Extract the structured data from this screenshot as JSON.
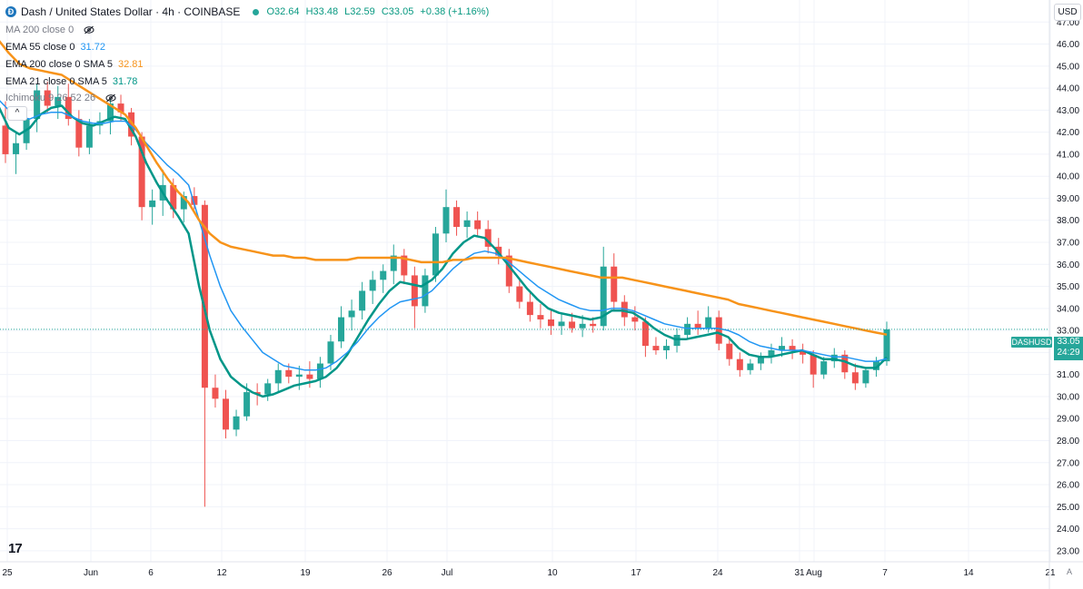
{
  "header": {
    "symbol_title": "Dash / United States Dollar · 4h · COINBASE",
    "logo_glyph": "Đ",
    "ohlc": {
      "o": "O32.64",
      "h": "H33.48",
      "l": "L32.59",
      "c": "C33.05",
      "change": "+0.38 (+1.16%)"
    }
  },
  "indicators": [
    {
      "label": "MA 200 close 0",
      "value": "",
      "color": "#787b86",
      "hidden": true
    },
    {
      "label": "EMA 55 close 0",
      "value": "31.72",
      "color": "#2196f3"
    },
    {
      "label": "EMA 200 close 0 SMA 5",
      "value": "32.81",
      "color": "#f7931a"
    },
    {
      "label": "EMA 21 close 0 SMA 5",
      "value": "31.78",
      "color": "#009688"
    },
    {
      "label": "Ichimoku 9 26 52 26",
      "value": "",
      "color": "#787b86",
      "hidden": true
    }
  ],
  "toolbar": {
    "currency": "USD",
    "collapse_glyph": "^",
    "auto_label": "A"
  },
  "branding": {
    "logo_text": "17"
  },
  "price_tag": {
    "symbol": "DASHUSD",
    "price": "33.05",
    "countdown": "24:29"
  },
  "chart_data": {
    "type": "line",
    "title": "Dash / United States Dollar · 4h · COINBASE",
    "ylim": [
      22.5,
      48.0
    ],
    "y_ticks": [
      "47.00",
      "46.00",
      "45.00",
      "44.00",
      "43.00",
      "42.00",
      "41.00",
      "40.00",
      "39.00",
      "38.00",
      "37.00",
      "36.00",
      "35.00",
      "34.00",
      "33.00",
      "32.00",
      "31.00",
      "30.00",
      "29.00",
      "28.00",
      "27.00",
      "26.00",
      "25.00",
      "24.00",
      "23.00"
    ],
    "x_ticks": [
      "25",
      "Jun",
      "6",
      "12",
      "19",
      "26",
      "Jul",
      "10",
      "17",
      "24",
      "31",
      "Aug",
      "7",
      "14",
      "21"
    ],
    "grid": true,
    "last_price": 33.05,
    "candles": [
      [
        42.3,
        43.4,
        40.6,
        41.0
      ],
      [
        41.0,
        42.0,
        40.1,
        41.5
      ],
      [
        41.5,
        42.9,
        41.2,
        42.6
      ],
      [
        42.6,
        44.2,
        42.0,
        43.9
      ],
      [
        43.9,
        44.3,
        42.9,
        43.2
      ],
      [
        43.2,
        44.1,
        42.6,
        43.6
      ],
      [
        43.6,
        44.2,
        42.3,
        42.6
      ],
      [
        42.6,
        43.0,
        40.9,
        41.3
      ],
      [
        41.3,
        42.6,
        41.0,
        42.3
      ],
      [
        42.3,
        42.9,
        41.9,
        42.5
      ],
      [
        42.5,
        43.5,
        41.9,
        43.3
      ],
      [
        43.3,
        43.7,
        42.5,
        42.9
      ],
      [
        42.9,
        43.1,
        41.4,
        41.8
      ],
      [
        41.8,
        42.0,
        38.0,
        38.6
      ],
      [
        38.6,
        39.4,
        37.8,
        38.9
      ],
      [
        38.9,
        40.3,
        38.2,
        39.6
      ],
      [
        39.6,
        39.9,
        38.1,
        38.5
      ],
      [
        38.5,
        39.3,
        37.9,
        39.1
      ],
      [
        39.1,
        39.5,
        38.5,
        38.7
      ],
      [
        38.7,
        38.9,
        25.0,
        30.4
      ],
      [
        30.4,
        31.0,
        29.5,
        29.9
      ],
      [
        29.9,
        30.3,
        28.1,
        28.5
      ],
      [
        28.5,
        29.4,
        28.2,
        29.1
      ],
      [
        29.1,
        30.6,
        28.9,
        30.2
      ],
      [
        30.2,
        30.6,
        29.6,
        30.1
      ],
      [
        30.1,
        30.8,
        29.8,
        30.6
      ],
      [
        30.6,
        31.5,
        30.2,
        31.2
      ],
      [
        31.2,
        31.5,
        30.6,
        30.9
      ],
      [
        30.9,
        31.4,
        30.3,
        31.0
      ],
      [
        31.0,
        31.6,
        30.4,
        30.8
      ],
      [
        30.8,
        31.8,
        30.4,
        31.5
      ],
      [
        31.5,
        32.8,
        31.2,
        32.5
      ],
      [
        32.5,
        34.1,
        32.2,
        33.6
      ],
      [
        33.6,
        34.4,
        33.0,
        33.9
      ],
      [
        33.9,
        35.2,
        33.5,
        34.8
      ],
      [
        34.8,
        35.7,
        34.2,
        35.3
      ],
      [
        35.3,
        36.0,
        34.7,
        35.7
      ],
      [
        35.7,
        36.9,
        35.1,
        36.4
      ],
      [
        36.4,
        36.7,
        35.1,
        35.5
      ],
      [
        35.5,
        35.9,
        33.1,
        34.1
      ],
      [
        34.1,
        35.8,
        33.8,
        35.5
      ],
      [
        35.5,
        37.7,
        35.2,
        37.4
      ],
      [
        37.4,
        39.4,
        37.0,
        38.6
      ],
      [
        38.6,
        38.9,
        37.3,
        37.7
      ],
      [
        37.7,
        38.4,
        37.2,
        38.0
      ],
      [
        38.0,
        38.4,
        37.3,
        37.6
      ],
      [
        37.6,
        38.0,
        36.5,
        36.8
      ],
      [
        36.8,
        37.2,
        36.0,
        36.4
      ],
      [
        36.4,
        36.7,
        34.7,
        35.0
      ],
      [
        35.0,
        35.3,
        34.0,
        34.3
      ],
      [
        34.3,
        34.8,
        33.4,
        33.7
      ],
      [
        33.7,
        34.2,
        33.1,
        33.5
      ],
      [
        33.5,
        33.9,
        32.8,
        33.2
      ],
      [
        33.2,
        33.8,
        32.8,
        33.4
      ],
      [
        33.4,
        33.8,
        32.9,
        33.1
      ],
      [
        33.1,
        33.7,
        32.7,
        33.3
      ],
      [
        33.3,
        33.6,
        32.9,
        33.2
      ],
      [
        33.2,
        36.8,
        33.0,
        35.9
      ],
      [
        35.9,
        36.5,
        33.9,
        34.3
      ],
      [
        34.3,
        34.6,
        33.2,
        33.6
      ],
      [
        33.6,
        34.1,
        33.0,
        33.4
      ],
      [
        33.4,
        33.6,
        31.8,
        32.3
      ],
      [
        32.3,
        32.7,
        31.9,
        32.1
      ],
      [
        32.1,
        32.6,
        31.7,
        32.3
      ],
      [
        32.3,
        33.1,
        32.0,
        32.8
      ],
      [
        32.8,
        33.6,
        32.6,
        33.3
      ],
      [
        33.3,
        33.9,
        32.8,
        33.1
      ],
      [
        33.1,
        34.1,
        32.9,
        33.6
      ],
      [
        33.6,
        33.9,
        32.1,
        32.4
      ],
      [
        32.4,
        32.6,
        31.4,
        31.7
      ],
      [
        31.7,
        32.0,
        30.9,
        31.2
      ],
      [
        31.2,
        31.7,
        31.0,
        31.5
      ],
      [
        31.5,
        32.0,
        31.2,
        31.8
      ],
      [
        31.8,
        32.4,
        31.5,
        32.1
      ],
      [
        32.1,
        32.7,
        31.8,
        32.3
      ],
      [
        32.3,
        32.6,
        31.7,
        32.1
      ],
      [
        32.1,
        32.4,
        31.5,
        31.9
      ],
      [
        31.9,
        32.1,
        30.4,
        31.0
      ],
      [
        31.0,
        31.8,
        30.8,
        31.6
      ],
      [
        31.6,
        32.2,
        31.3,
        31.9
      ],
      [
        31.9,
        32.1,
        30.8,
        31.1
      ],
      [
        31.1,
        31.5,
        30.3,
        30.6
      ],
      [
        30.6,
        31.3,
        30.4,
        31.2
      ],
      [
        31.2,
        31.8,
        30.9,
        31.6
      ],
      [
        31.6,
        33.4,
        31.4,
        33.05
      ]
    ],
    "series": [
      {
        "name": "EMA 21 close 0 SMA 5",
        "color": "#009688",
        "values": [
          43.2,
          42.2,
          41.9,
          42.2,
          42.8,
          43.1,
          43.2,
          42.7,
          42.4,
          42.3,
          42.5,
          42.7,
          42.6,
          41.8,
          40.6,
          39.7,
          38.9,
          38.2,
          37.4,
          35.0,
          33.0,
          31.7,
          30.9,
          30.5,
          30.2,
          30.0,
          30.1,
          30.3,
          30.5,
          30.6,
          30.7,
          30.9,
          31.3,
          31.9,
          32.7,
          33.5,
          34.2,
          34.8,
          35.2,
          35.1,
          35.0,
          35.3,
          35.8,
          36.5,
          37.0,
          37.3,
          37.2,
          36.7,
          36.1,
          35.5,
          34.9,
          34.4,
          34.0,
          33.8,
          33.7,
          33.6,
          33.5,
          33.6,
          33.9,
          33.9,
          33.8,
          33.5,
          33.1,
          32.8,
          32.6,
          32.6,
          32.7,
          32.8,
          32.9,
          32.7,
          32.2,
          31.9,
          31.8,
          31.8,
          31.9,
          32.0,
          32.1,
          31.9,
          31.7,
          31.7,
          31.6,
          31.4,
          31.3,
          31.3,
          31.78
        ]
      },
      {
        "name": "EMA 55 close 0",
        "color": "#2196f3",
        "values": [
          43.5,
          43.0,
          42.7,
          42.6,
          42.8,
          42.9,
          42.9,
          42.7,
          42.5,
          42.4,
          42.4,
          42.5,
          42.5,
          42.1,
          41.5,
          41.0,
          40.5,
          40.1,
          39.6,
          38.0,
          36.4,
          35.0,
          33.9,
          33.2,
          32.6,
          32.0,
          31.7,
          31.4,
          31.3,
          31.2,
          31.2,
          31.3,
          31.6,
          32.0,
          32.5,
          33.1,
          33.6,
          34.0,
          34.3,
          34.4,
          34.5,
          34.8,
          35.3,
          35.8,
          36.2,
          36.5,
          36.6,
          36.5,
          36.2,
          35.8,
          35.4,
          35.0,
          34.7,
          34.4,
          34.2,
          34.0,
          33.9,
          33.9,
          34.0,
          34.0,
          33.9,
          33.7,
          33.5,
          33.3,
          33.2,
          33.1,
          33.1,
          33.1,
          33.1,
          33.0,
          32.8,
          32.5,
          32.3,
          32.2,
          32.1,
          32.1,
          32.1,
          32.0,
          31.9,
          31.8,
          31.8,
          31.7,
          31.6,
          31.6,
          31.72
        ]
      },
      {
        "name": "EMA 200 close 0 SMA 5",
        "color": "#f7931a",
        "values": [
          46.2,
          45.6,
          45.1,
          44.9,
          44.8,
          44.7,
          44.6,
          44.3,
          44.0,
          43.7,
          43.4,
          43.1,
          42.8,
          42.2,
          41.4,
          40.6,
          39.9,
          39.3,
          38.8,
          38.0,
          37.4,
          37.0,
          36.8,
          36.7,
          36.6,
          36.5,
          36.4,
          36.4,
          36.3,
          36.3,
          36.2,
          36.2,
          36.2,
          36.2,
          36.3,
          36.3,
          36.3,
          36.3,
          36.3,
          36.2,
          36.1,
          36.1,
          36.1,
          36.2,
          36.2,
          36.3,
          36.3,
          36.3,
          36.3,
          36.2,
          36.1,
          36.0,
          35.9,
          35.8,
          35.7,
          35.6,
          35.5,
          35.4,
          35.4,
          35.4,
          35.3,
          35.2,
          35.1,
          35.0,
          34.9,
          34.8,
          34.7,
          34.6,
          34.5,
          34.4,
          34.2,
          34.1,
          34.0,
          33.9,
          33.8,
          33.7,
          33.6,
          33.5,
          33.4,
          33.3,
          33.2,
          33.1,
          33.0,
          32.9,
          32.81
        ]
      }
    ]
  }
}
